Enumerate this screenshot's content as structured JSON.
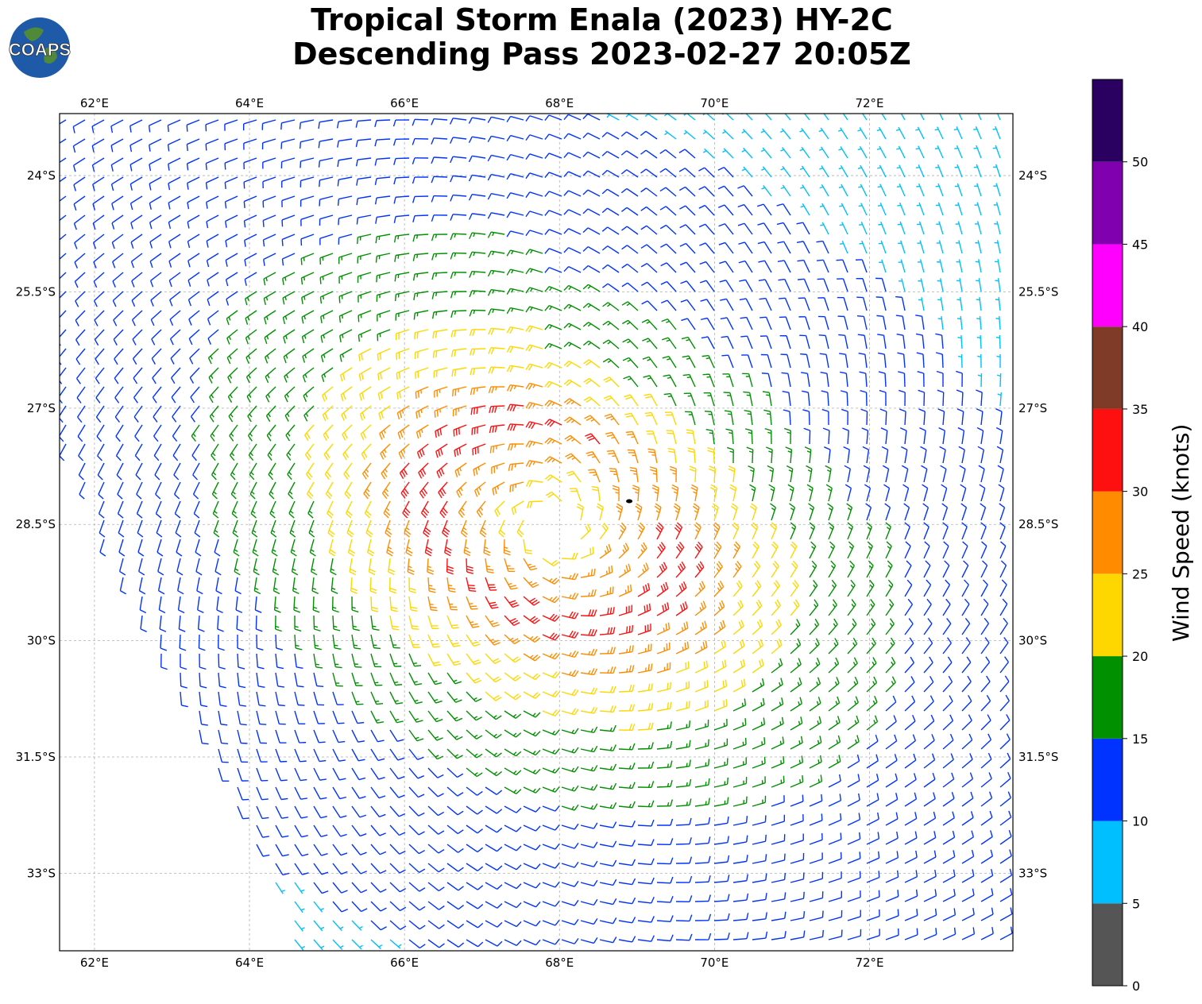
{
  "title_line1": "Tropical Storm Enala (2023) HY-2C",
  "title_line2": "Descending Pass 2023-02-27 20:05Z",
  "logo_text": "COAPS",
  "chart_data": {
    "type": "wind_barbs",
    "longitude_ticks": [
      "62°E",
      "64°E",
      "66°E",
      "68°E",
      "70°E",
      "72°E"
    ],
    "latitude_ticks": [
      "24°S",
      "25.5°S",
      "27°S",
      "28.5°S",
      "30°S",
      "31.5°S",
      "33°S"
    ],
    "lon_range": [
      61.55,
      73.85
    ],
    "lat_range": [
      -34.0,
      -23.2
    ],
    "grid": true,
    "storm_center": {
      "lon": 67.9,
      "lat": -28.5
    },
    "low_level_center_marker": {
      "lon": 68.9,
      "lat": -28.2
    },
    "colorbar": {
      "label": "Wind Speed (knots)",
      "ticks": [
        "0",
        "5",
        "10",
        "15",
        "20",
        "25",
        "30",
        "35",
        "40",
        "45",
        "50"
      ],
      "bins": [
        {
          "min": 0,
          "max": 5,
          "color": "#555555"
        },
        {
          "min": 5,
          "max": 10,
          "color": "#00bfff"
        },
        {
          "min": 10,
          "max": 15,
          "color": "#0033ff"
        },
        {
          "min": 15,
          "max": 20,
          "color": "#009000"
        },
        {
          "min": 20,
          "max": 25,
          "color": "#ffd700"
        },
        {
          "min": 25,
          "max": 30,
          "color": "#ff8c00"
        },
        {
          "min": 30,
          "max": 35,
          "color": "#ff1010"
        },
        {
          "min": 35,
          "max": 40,
          "color": "#803a28"
        },
        {
          "min": 40,
          "max": 45,
          "color": "#ff00ff"
        },
        {
          "min": 45,
          "max": 50,
          "color": "#8000b0"
        },
        {
          "min": 50,
          "max": 55,
          "color": "#2a0060"
        }
      ]
    }
  }
}
